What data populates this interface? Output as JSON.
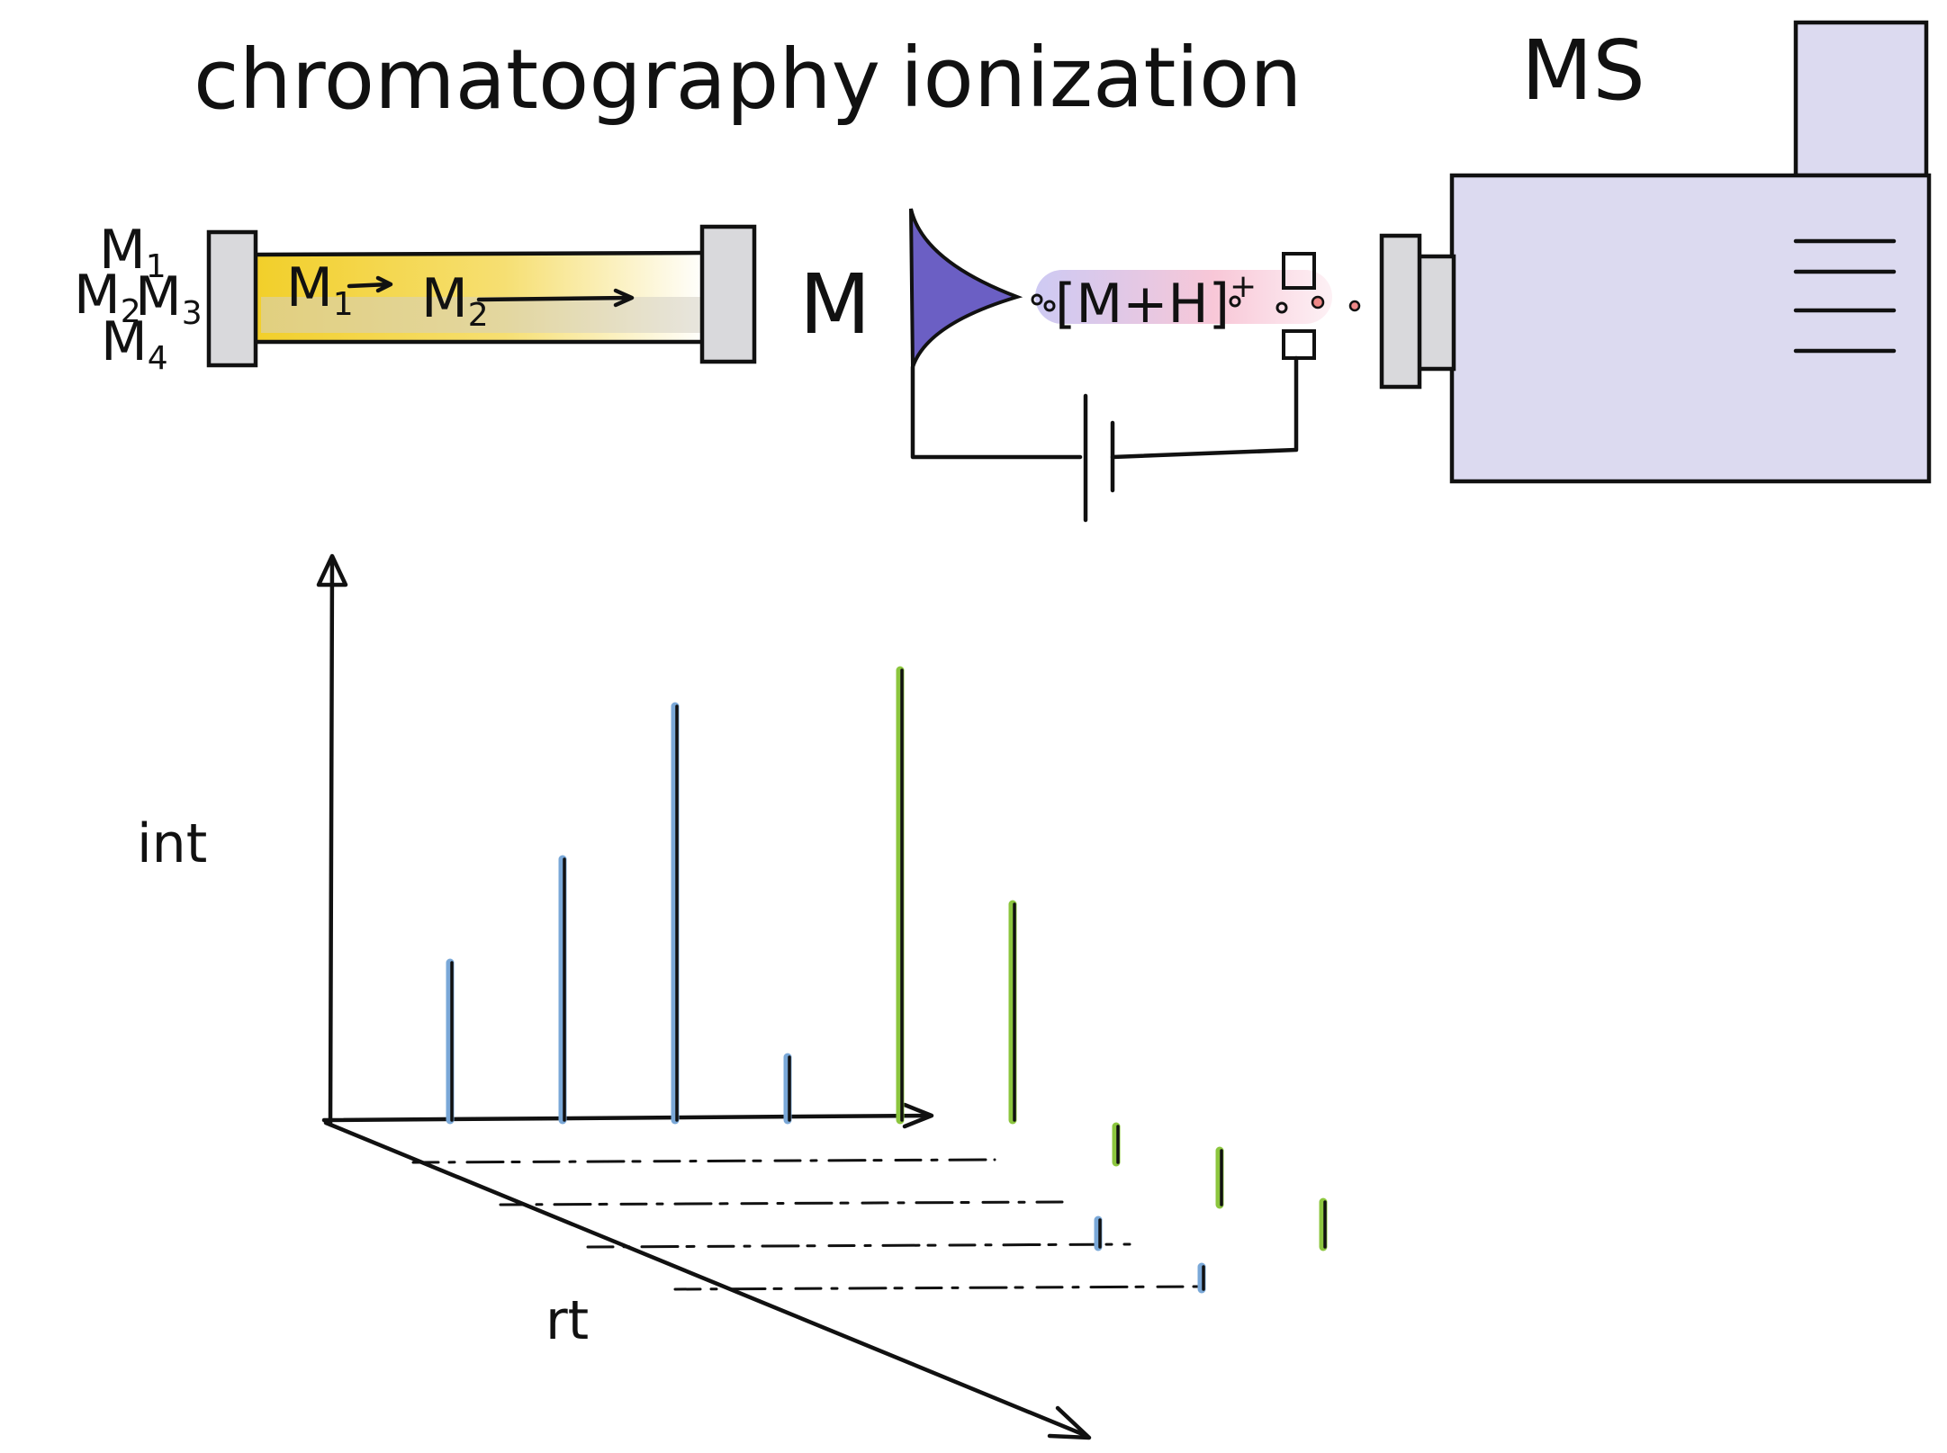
{
  "labels": {
    "chromatography": "chromatography",
    "ionization": "ionization",
    "ms": "MS",
    "m1": "M",
    "m1_sub": "1",
    "m2": "M",
    "m2_sub": "2",
    "m3": "M",
    "m3_sub": "3",
    "m4": "M",
    "m4_sub": "4",
    "col_m1": "M",
    "col_m1_sub": "1",
    "col_m2": "M",
    "col_m2_sub": "2",
    "analyte": "M",
    "ion_open": "[",
    "ion_text": "M+H",
    "ion_close": "]",
    "ion_charge": "+",
    "int_axis": "int",
    "rt_axis": "rt"
  },
  "colors": {
    "column_fill": "#f2d43a",
    "endcap": "#d9d9dc",
    "spray": "#6b5fc4",
    "ms_body": "#dcdaf0",
    "blue_peak": "#7aa8d8",
    "green_peak": "#8cc63e",
    "ion_glow": "#f3b3c8"
  },
  "icons": {
    "column": "chromatography-column-icon",
    "spray": "electrospray-cone-icon",
    "battery": "battery-icon",
    "ms": "mass-spectrometer-icon"
  },
  "chart_data": {
    "type": "bar",
    "xlabel": "rt",
    "ylabel": "int",
    "rows": [
      {
        "values": [
          0.35,
          0.58,
          0.92,
          0.14,
          1.0,
          0.48
        ]
      },
      {
        "values": [
          0.0,
          0.0,
          0.0,
          0.0,
          0.0,
          0.08
        ]
      },
      {
        "values": [
          0.0,
          0.0,
          0.0,
          0.0,
          0.0,
          0.12
        ]
      },
      {
        "values": [
          0.0,
          0.0,
          0.0,
          0.06,
          0.0,
          0.1
        ]
      },
      {
        "values": [
          0.0,
          0.0,
          0.0,
          0.05,
          0.0,
          0.0
        ]
      }
    ]
  }
}
